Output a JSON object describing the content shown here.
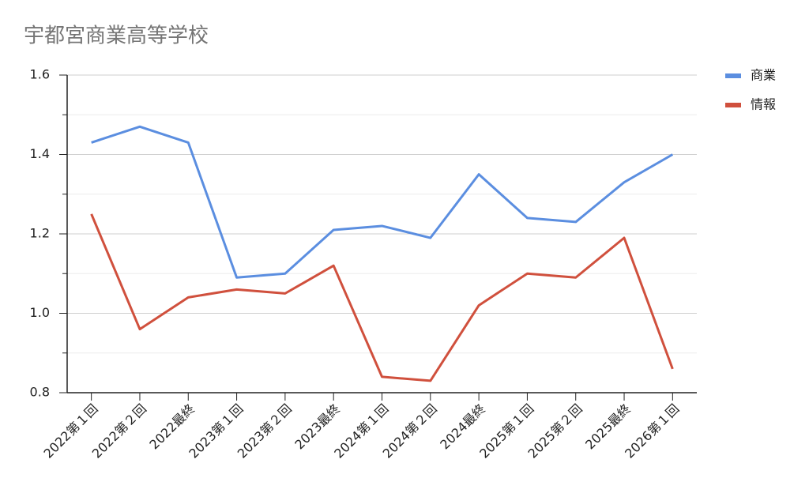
{
  "chart_data": {
    "type": "line",
    "title": "宇都宮商業高等学校",
    "categories": [
      "2022第１回",
      "2022第２回",
      "2022最終",
      "2023第１回",
      "2023第２回",
      "2023最終",
      "2024第１回",
      "2024第２回",
      "2024最終",
      "2025第１回",
      "2025第２回",
      "2025最終",
      "2026第１回"
    ],
    "series": [
      {
        "name": "商業",
        "color": "#5b8ee0",
        "values": [
          1.43,
          1.47,
          1.43,
          1.09,
          1.1,
          1.21,
          1.22,
          1.19,
          1.35,
          1.24,
          1.23,
          1.33,
          1.4
        ]
      },
      {
        "name": "情報",
        "color": "#d0503d",
        "values": [
          1.25,
          0.96,
          1.04,
          1.06,
          1.05,
          1.12,
          0.84,
          0.83,
          1.02,
          1.1,
          1.09,
          1.19,
          0.86
        ]
      }
    ],
    "ylim": [
      0.8,
      1.6
    ],
    "yticks": [
      0.8,
      {
        "value": 1,
        "label": "1.0"
      },
      1.2,
      1.4,
      1.6
    ],
    "minor_yticks": [
      0.9,
      1.1,
      1.3,
      1.5
    ],
    "grid": true,
    "legend": "right"
  }
}
